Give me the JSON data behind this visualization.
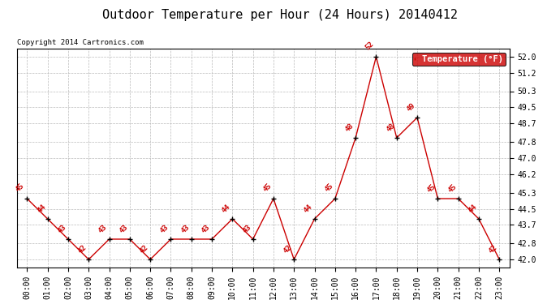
{
  "title": "Outdoor Temperature per Hour (24 Hours) 20140412",
  "copyright": "Copyright 2014 Cartronics.com",
  "legend_label": "Temperature (°F)",
  "hours": [
    "00:00",
    "01:00",
    "02:00",
    "03:00",
    "04:00",
    "05:00",
    "06:00",
    "07:00",
    "08:00",
    "09:00",
    "10:00",
    "11:00",
    "12:00",
    "13:00",
    "14:00",
    "15:00",
    "16:00",
    "17:00",
    "18:00",
    "19:00",
    "20:00",
    "21:00",
    "22:00",
    "23:00"
  ],
  "temps": [
    45,
    44,
    43,
    42,
    43,
    43,
    42,
    43,
    43,
    43,
    44,
    43,
    45,
    42,
    44,
    45,
    48,
    52,
    48,
    49,
    45,
    45,
    44,
    42
  ],
  "ylim_min": 41.6,
  "ylim_max": 52.4,
  "yticks": [
    42.0,
    42.8,
    43.7,
    44.5,
    45.3,
    46.2,
    47.0,
    47.8,
    48.7,
    49.5,
    50.3,
    51.2,
    52.0
  ],
  "ytick_labels": [
    "42.0",
    "42.8",
    "43.7",
    "44.5",
    "45.3",
    "46.2",
    "47.0",
    "47.8",
    "48.7",
    "49.5",
    "50.3",
    "51.2",
    "52.0"
  ],
  "line_color": "#cc0000",
  "marker_color": "#000000",
  "label_color": "#cc0000",
  "bg_color": "#ffffff",
  "grid_color": "#bbbbbb",
  "title_fontsize": 11,
  "label_fontsize": 6.5,
  "tick_fontsize": 7,
  "legend_bg": "#cc0000",
  "legend_text_color": "#ffffff"
}
